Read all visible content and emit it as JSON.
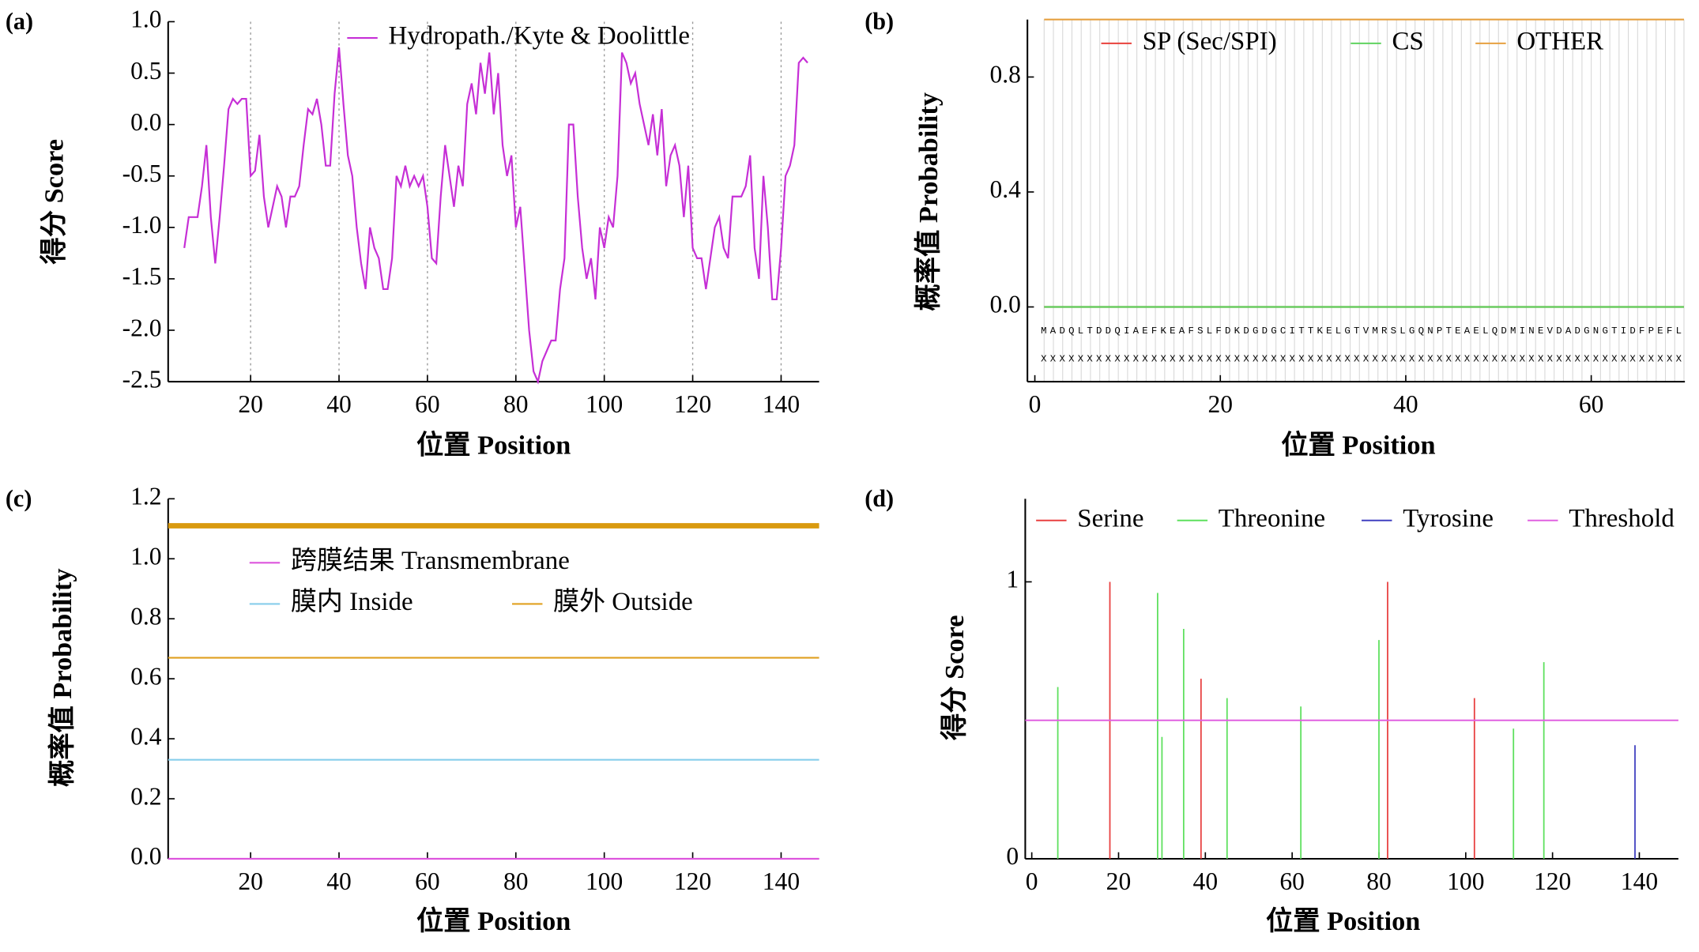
{
  "chart_data": [
    {
      "type": "line",
      "label": "(a)",
      "xlabel": "位置 Position",
      "ylabel": "得分 Score",
      "grid": "x",
      "xlim": [
        1.35,
        148.6
      ],
      "ylim": [
        -2.5,
        1.0
      ],
      "xticks": [
        20,
        40,
        60,
        80,
        100,
        120,
        140
      ],
      "yticks": [
        {
          "value": 1.0,
          "label": "1.0"
        },
        {
          "value": 0.5,
          "label": "0.5"
        },
        {
          "value": 0,
          "label": "0.0"
        },
        {
          "value": -0.5,
          "label": "-0.5"
        },
        {
          "value": -1.0,
          "label": "-1.0"
        },
        {
          "value": -1.5,
          "label": "-1.5"
        },
        {
          "value": -2.0,
          "label": "-2.0"
        },
        {
          "value": -2.5,
          "label": "-2.5"
        }
      ],
      "x": [
        5,
        6,
        7,
        8,
        9,
        10,
        11,
        12,
        13,
        14,
        15,
        16,
        17,
        18,
        19,
        20,
        21,
        22,
        23,
        24,
        25,
        26,
        27,
        28,
        29,
        30,
        31,
        32,
        33,
        34,
        35,
        36,
        37,
        38,
        39,
        40,
        41,
        42,
        43,
        44,
        45,
        46,
        47,
        48,
        49,
        50,
        51,
        52,
        53,
        54,
        55,
        56,
        57,
        58,
        59,
        60,
        61,
        62,
        63,
        64,
        65,
        66,
        67,
        68,
        69,
        70,
        71,
        72,
        73,
        74,
        75,
        76,
        77,
        78,
        79,
        80,
        81,
        82,
        83,
        84,
        85,
        86,
        87,
        88,
        89,
        90,
        91,
        92,
        93,
        94,
        95,
        96,
        97,
        98,
        99,
        100,
        101,
        102,
        103,
        104,
        105,
        106,
        107,
        108,
        109,
        110,
        111,
        112,
        113,
        114,
        115,
        116,
        117,
        118,
        119,
        120,
        121,
        122,
        123,
        124,
        125,
        126,
        127,
        128,
        129,
        130,
        131,
        132,
        133,
        134,
        135,
        136,
        137,
        138,
        139,
        140,
        141,
        142,
        143,
        144,
        145,
        146
      ],
      "series": [
        {
          "name": "Hydropath./Kyte & Doolittle",
          "color": "#c62fd6",
          "values": [
            -1.2,
            -0.9,
            -0.9,
            -0.9,
            -0.6,
            -0.2,
            -0.9,
            -1.35,
            -0.9,
            -0.4,
            0.15,
            0.25,
            0.2,
            0.25,
            0.25,
            -0.5,
            -0.45,
            -0.1,
            -0.7,
            -1.0,
            -0.8,
            -0.6,
            -0.7,
            -1.0,
            -0.7,
            -0.7,
            -0.6,
            -0.2,
            0.15,
            0.1,
            0.25,
            0.0,
            -0.4,
            -0.4,
            0.3,
            0.75,
            0.2,
            -0.3,
            -0.5,
            -1.0,
            -1.35,
            -1.6,
            -1.0,
            -1.2,
            -1.3,
            -1.6,
            -1.6,
            -1.3,
            -0.5,
            -0.6,
            -0.4,
            -0.6,
            -0.5,
            -0.6,
            -0.5,
            -0.8,
            -1.3,
            -1.35,
            -0.7,
            -0.2,
            -0.5,
            -0.8,
            -0.4,
            -0.6,
            0.2,
            0.4,
            0.1,
            0.6,
            0.3,
            0.7,
            0.1,
            0.5,
            -0.2,
            -0.5,
            -0.3,
            -1.0,
            -0.8,
            -1.4,
            -2.0,
            -2.4,
            -2.5,
            -2.3,
            -2.2,
            -2.1,
            -2.1,
            -1.6,
            -1.3,
            0.0,
            0.0,
            -0.7,
            -1.2,
            -1.5,
            -1.3,
            -1.7,
            -1.0,
            -1.2,
            -0.9,
            -1.0,
            -0.5,
            0.7,
            0.6,
            0.4,
            0.5,
            0.2,
            0.0,
            -0.2,
            0.1,
            -0.3,
            0.15,
            -0.6,
            -0.3,
            -0.2,
            -0.4,
            -0.9,
            -0.4,
            -1.2,
            -1.3,
            -1.3,
            -1.6,
            -1.3,
            -1.0,
            -0.9,
            -1.2,
            -1.3,
            -0.7,
            -0.7,
            -0.7,
            -0.6,
            -0.3,
            -1.2,
            -1.5,
            -0.5,
            -1.0,
            -1.7,
            -1.7,
            -1.2,
            -0.5,
            -0.4,
            -0.2,
            0.6,
            0.65,
            0.6
          ]
        }
      ]
    },
    {
      "type": "line",
      "label": "(b)",
      "xlabel": "位置 Position",
      "ylabel": "概率值 Probability",
      "grid": "positions",
      "xlim": [
        -0.8,
        70.1
      ],
      "ylim": [
        -0.26,
        1.0
      ],
      "xticks": [
        0,
        20,
        40,
        60
      ],
      "yticks": [
        {
          "value": 0,
          "label": "0.0"
        },
        {
          "value": 0.4,
          "label": "0.4"
        },
        {
          "value": 0.8,
          "label": "0.8"
        }
      ],
      "sequence": "MADQLTDDQIAEFKEAFSLFDKDGDGCITTKELGTVMRSLGQNPTEAELQDMINEVDADGNGTIDFPEFL",
      "prediction": "XXXXXXXXXXXXXXXXXXXXXXXXXXXXXXXXXXXXXXXXXXXXXXXXXXXXXXXXXXXXXXXXXXXXXX",
      "x": [
        1,
        2,
        3,
        4,
        5,
        6,
        7,
        8,
        9,
        10,
        11,
        12,
        13,
        14,
        15,
        16,
        17,
        18,
        19,
        20,
        21,
        22,
        23,
        24,
        25,
        26,
        27,
        28,
        29,
        30,
        31,
        32,
        33,
        34,
        35,
        36,
        37,
        38,
        39,
        40,
        41,
        42,
        43,
        44,
        45,
        46,
        47,
        48,
        49,
        50,
        51,
        52,
        53,
        54,
        55,
        56,
        57,
        58,
        59,
        60,
        61,
        62,
        63,
        64,
        65,
        66,
        67,
        68,
        69,
        70
      ],
      "series": [
        {
          "name": "SP (Sec/SPI)",
          "color": "#e8413c",
          "values": [
            0,
            0,
            0,
            0,
            0,
            0,
            0,
            0,
            0,
            0,
            0,
            0,
            0,
            0,
            0,
            0,
            0,
            0,
            0,
            0,
            0,
            0,
            0,
            0,
            0,
            0,
            0,
            0,
            0,
            0,
            0,
            0,
            0,
            0,
            0,
            0,
            0,
            0,
            0,
            0,
            0,
            0,
            0,
            0,
            0,
            0,
            0,
            0,
            0,
            0,
            0,
            0,
            0,
            0,
            0,
            0,
            0,
            0,
            0,
            0,
            0,
            0,
            0,
            0,
            0,
            0,
            0,
            0,
            0,
            0
          ]
        },
        {
          "name": "CS",
          "color": "#5fd35f",
          "values": [
            0,
            0,
            0,
            0,
            0,
            0,
            0,
            0,
            0,
            0,
            0,
            0,
            0,
            0,
            0,
            0,
            0,
            0,
            0,
            0,
            0,
            0,
            0,
            0,
            0,
            0,
            0,
            0,
            0,
            0,
            0,
            0,
            0,
            0,
            0,
            0,
            0,
            0,
            0,
            0,
            0,
            0,
            0,
            0,
            0,
            0,
            0,
            0,
            0,
            0,
            0,
            0,
            0,
            0,
            0,
            0,
            0,
            0,
            0,
            0,
            0,
            0,
            0,
            0,
            0,
            0,
            0,
            0,
            0,
            0
          ]
        },
        {
          "name": "OTHER",
          "color": "#e6a040",
          "values": [
            1,
            1,
            1,
            1,
            1,
            1,
            1,
            1,
            1,
            1,
            1,
            1,
            1,
            1,
            1,
            1,
            1,
            1,
            1,
            1,
            1,
            1,
            1,
            1,
            1,
            1,
            1,
            1,
            1,
            1,
            1,
            1,
            1,
            1,
            1,
            1,
            1,
            1,
            1,
            1,
            1,
            1,
            1,
            1,
            1,
            1,
            1,
            1,
            1,
            1,
            1,
            1,
            1,
            1,
            1,
            1,
            1,
            1,
            1,
            1,
            1,
            1,
            1,
            1,
            1,
            1,
            1,
            1,
            1,
            1
          ]
        }
      ]
    },
    {
      "type": "line",
      "label": "(c)",
      "xlabel": "位置 Position",
      "ylabel": "概率值 Probability",
      "xlim": [
        1.35,
        148.6
      ],
      "ylim": [
        0,
        1.2
      ],
      "xticks": [
        20,
        40,
        60,
        80,
        100,
        120,
        140
      ],
      "yticks": [
        {
          "value": 0,
          "label": "0.0"
        },
        {
          "value": 0.2,
          "label": "0.2"
        },
        {
          "value": 0.4,
          "label": "0.4"
        },
        {
          "value": 0.6,
          "label": "0.6"
        },
        {
          "value": 0.8,
          "label": "0.8"
        },
        {
          "value": 1.0,
          "label": "1.0"
        },
        {
          "value": 1.2,
          "label": "1.2"
        }
      ],
      "x": [
        1.35,
        148.6
      ],
      "bands": [
        {
          "y": 1.11,
          "color": "#d99a0f"
        }
      ],
      "series": [
        {
          "name": "跨膜结果 Transmembrane",
          "color": "#dd55dd",
          "values": [
            0,
            0
          ]
        },
        {
          "name": "膜内 Inside",
          "color": "#87ceeb",
          "values": [
            0.33,
            0.33
          ]
        },
        {
          "name": "膜外 Outside",
          "color": "#e0a020",
          "values": [
            0.67,
            0.67
          ]
        }
      ]
    },
    {
      "type": "stem",
      "label": "(d)",
      "xlabel": "位置 Position",
      "ylabel": "得分 Score",
      "xlim": [
        -1.5,
        149
      ],
      "ylim": [
        0,
        1.3
      ],
      "xticks": [
        0,
        20,
        40,
        60,
        80,
        100,
        120,
        140
      ],
      "yticks": [
        0,
        1
      ],
      "threshold": 0.5,
      "threshold_name": "Threshold",
      "threshold_color": "#e060e0",
      "series": [
        {
          "name": "Serine",
          "color": "#e84040",
          "x": [
            18,
            39,
            82,
            102
          ],
          "values": [
            1.0,
            0.65,
            1.0,
            0.58
          ]
        },
        {
          "name": "Threonine",
          "color": "#5ee05e",
          "x": [
            6,
            29,
            30,
            35,
            45,
            62,
            80,
            111,
            118
          ],
          "values": [
            0.62,
            0.96,
            0.44,
            0.83,
            0.58,
            0.55,
            0.79,
            0.47,
            0.71
          ]
        },
        {
          "name": "Tyrosine",
          "color": "#4040c0",
          "x": [
            139
          ],
          "values": [
            0.41
          ]
        }
      ]
    }
  ]
}
